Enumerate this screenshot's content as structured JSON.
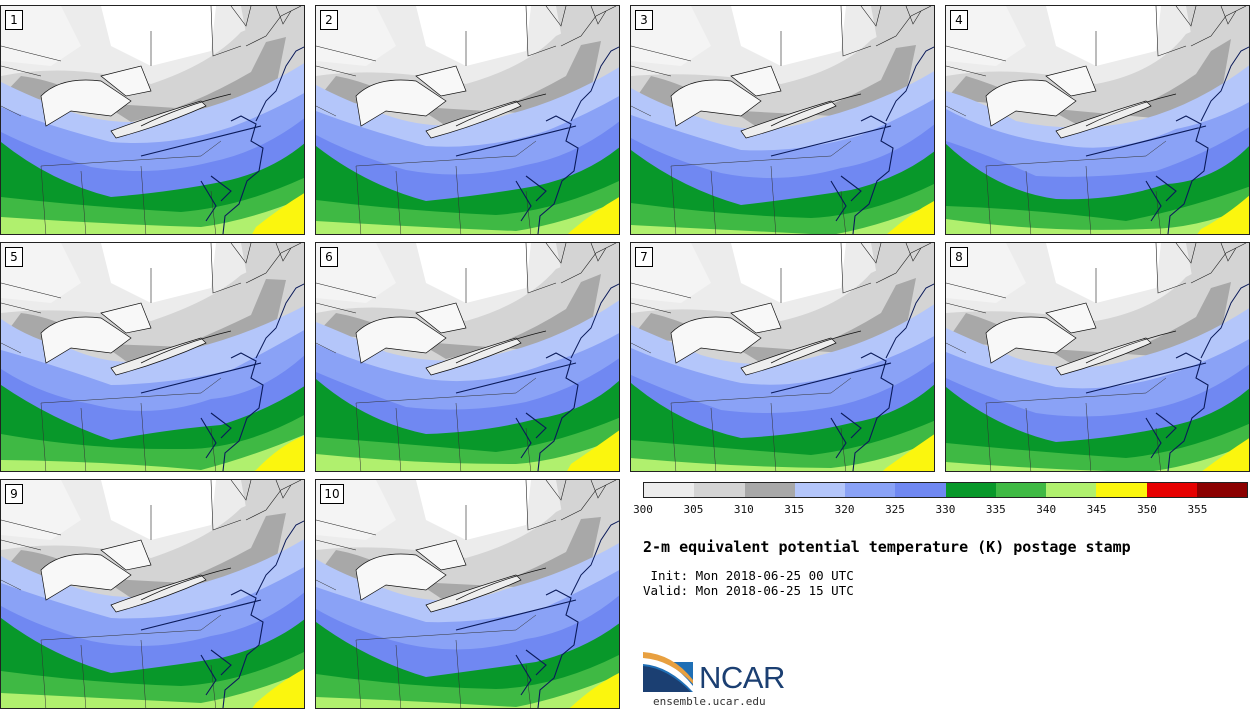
{
  "stamps": [
    {
      "label": "1"
    },
    {
      "label": "2"
    },
    {
      "label": "3"
    },
    {
      "label": "4"
    },
    {
      "label": "5"
    },
    {
      "label": "6"
    },
    {
      "label": "7"
    },
    {
      "label": "8"
    },
    {
      "label": "9"
    },
    {
      "label": "10"
    }
  ],
  "colorbar": {
    "ticks": [
      "300",
      "305",
      "310",
      "315",
      "320",
      "325",
      "330",
      "335",
      "340",
      "345",
      "350",
      "355"
    ],
    "colors": [
      "#ececec",
      "#d4d4d4",
      "#a8a8a8",
      "#b4c6fa",
      "#8aa2f6",
      "#7088f2",
      "#08982a",
      "#3fb944",
      "#b0f06e",
      "#fbf60e",
      "#e60000",
      "#8b0000"
    ]
  },
  "title": "2-m equivalent potential temperature (K) postage stamp",
  "init": " Init: Mon 2018-06-25 00 UTC",
  "valid": "Valid: Mon 2018-06-25 15 UTC",
  "logo": {
    "text": "NCAR",
    "site": "ensemble.ucar.edu"
  }
}
